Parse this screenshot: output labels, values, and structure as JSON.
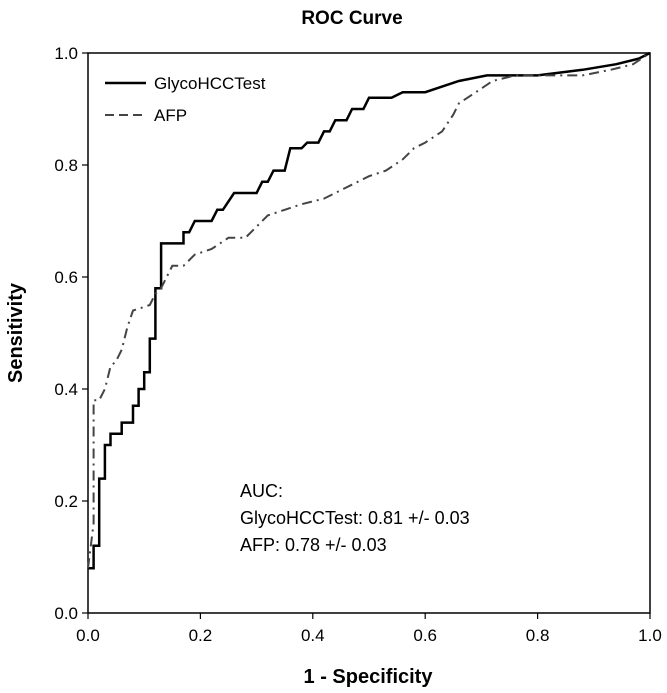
{
  "chart_data": {
    "type": "line",
    "title": "ROC Curve",
    "xlabel": "1 - Specificity",
    "ylabel": "Sensitivity",
    "xlim": [
      0,
      1
    ],
    "ylim": [
      0,
      1
    ],
    "x_ticks": [
      "0.0",
      "0.2",
      "0.4",
      "0.6",
      "0.8",
      "1.0"
    ],
    "y_ticks": [
      "0.0",
      "0.2",
      "0.4",
      "0.6",
      "0.8",
      "1.0"
    ],
    "grid": false,
    "legend_position": "top-left",
    "series": [
      {
        "name": "GlycoHCCTest",
        "color": "#000000",
        "style": "solid",
        "points": [
          [
            0,
            0.08
          ],
          [
            0.01,
            0.08
          ],
          [
            0.01,
            0.12
          ],
          [
            0.02,
            0.12
          ],
          [
            0.02,
            0.24
          ],
          [
            0.03,
            0.24
          ],
          [
            0.03,
            0.3
          ],
          [
            0.04,
            0.3
          ],
          [
            0.04,
            0.32
          ],
          [
            0.06,
            0.32
          ],
          [
            0.06,
            0.34
          ],
          [
            0.08,
            0.34
          ],
          [
            0.08,
            0.37
          ],
          [
            0.09,
            0.37
          ],
          [
            0.09,
            0.4
          ],
          [
            0.1,
            0.4
          ],
          [
            0.1,
            0.43
          ],
          [
            0.11,
            0.43
          ],
          [
            0.11,
            0.49
          ],
          [
            0.12,
            0.49
          ],
          [
            0.12,
            0.58
          ],
          [
            0.13,
            0.58
          ],
          [
            0.13,
            0.66
          ],
          [
            0.17,
            0.66
          ],
          [
            0.17,
            0.68
          ],
          [
            0.18,
            0.68
          ],
          [
            0.19,
            0.7
          ],
          [
            0.22,
            0.7
          ],
          [
            0.23,
            0.72
          ],
          [
            0.24,
            0.72
          ],
          [
            0.26,
            0.75
          ],
          [
            0.3,
            0.75
          ],
          [
            0.31,
            0.77
          ],
          [
            0.32,
            0.77
          ],
          [
            0.33,
            0.79
          ],
          [
            0.35,
            0.79
          ],
          [
            0.36,
            0.83
          ],
          [
            0.38,
            0.83
          ],
          [
            0.39,
            0.84
          ],
          [
            0.41,
            0.84
          ],
          [
            0.42,
            0.86
          ],
          [
            0.43,
            0.86
          ],
          [
            0.44,
            0.88
          ],
          [
            0.46,
            0.88
          ],
          [
            0.47,
            0.9
          ],
          [
            0.49,
            0.9
          ],
          [
            0.5,
            0.92
          ],
          [
            0.54,
            0.92
          ],
          [
            0.56,
            0.93
          ],
          [
            0.6,
            0.93
          ],
          [
            0.63,
            0.94
          ],
          [
            0.66,
            0.95
          ],
          [
            0.71,
            0.96
          ],
          [
            0.8,
            0.96
          ],
          [
            0.88,
            0.97
          ],
          [
            0.94,
            0.98
          ],
          [
            0.98,
            0.99
          ],
          [
            1.0,
            1.0
          ]
        ]
      },
      {
        "name": "AFP",
        "color": "#444444",
        "style": "dash-dot",
        "points": [
          [
            0,
            0.08
          ],
          [
            0.01,
            0.16
          ],
          [
            0.01,
            0.35
          ],
          [
            0.01,
            0.38
          ],
          [
            0.02,
            0.38
          ],
          [
            0.03,
            0.4
          ],
          [
            0.04,
            0.44
          ],
          [
            0.05,
            0.45
          ],
          [
            0.06,
            0.47
          ],
          [
            0.07,
            0.51
          ],
          [
            0.08,
            0.54
          ],
          [
            0.11,
            0.55
          ],
          [
            0.12,
            0.57
          ],
          [
            0.13,
            0.58
          ],
          [
            0.15,
            0.62
          ],
          [
            0.17,
            0.62
          ],
          [
            0.19,
            0.64
          ],
          [
            0.22,
            0.65
          ],
          [
            0.25,
            0.67
          ],
          [
            0.28,
            0.67
          ],
          [
            0.32,
            0.71
          ],
          [
            0.35,
            0.72
          ],
          [
            0.38,
            0.73
          ],
          [
            0.42,
            0.74
          ],
          [
            0.46,
            0.76
          ],
          [
            0.5,
            0.78
          ],
          [
            0.53,
            0.79
          ],
          [
            0.56,
            0.81
          ],
          [
            0.58,
            0.83
          ],
          [
            0.6,
            0.84
          ],
          [
            0.63,
            0.86
          ],
          [
            0.65,
            0.89
          ],
          [
            0.66,
            0.91
          ],
          [
            0.69,
            0.93
          ],
          [
            0.72,
            0.95
          ],
          [
            0.76,
            0.96
          ],
          [
            0.82,
            0.96
          ],
          [
            0.88,
            0.96
          ],
          [
            0.93,
            0.97
          ],
          [
            0.97,
            0.98
          ],
          [
            1.0,
            1.0
          ]
        ]
      }
    ],
    "annotations": [
      "AUC:",
      "GlycoHCCTest: 0.81 +/- 0.03",
      "AFP: 0.78 +/- 0.03"
    ]
  }
}
